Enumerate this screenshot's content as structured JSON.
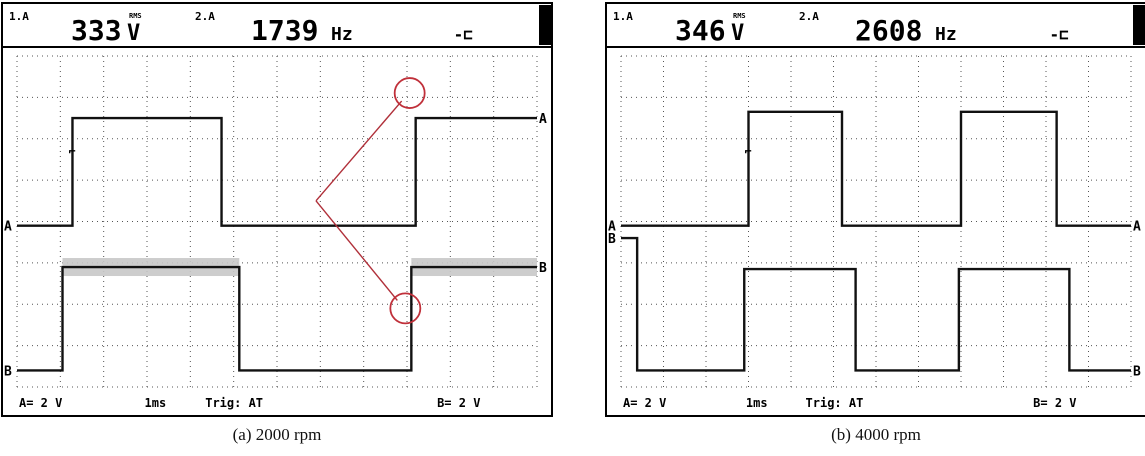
{
  "chart_data": [
    {
      "type": "line",
      "title": "",
      "header": {
        "ch1_tag": "1.A",
        "ch1_value": "333",
        "ch1_unit": "V",
        "ch1_unit_sup": "RMS",
        "ch2_tag": "2.A",
        "ch2_value": "1739",
        "ch2_unit": "Hz",
        "trigger_symbol": "-⊏"
      },
      "footer": {
        "a_range": "A= 2 V",
        "timebase": "1ms",
        "trigger": "Trig: AT",
        "b_range": "B= 2 V"
      },
      "caption": "(a) 2000 rpm",
      "channel_markers": {
        "left_a": "A",
        "left_b": "B",
        "right_a": "A",
        "right_b": "B"
      },
      "x_divisions": 12,
      "y_divisions": 8,
      "grid": true,
      "time_per_div_ms": 1,
      "series": [
        {
          "name": "A",
          "values": [
            [
              0,
              -0.1
            ],
            [
              1.28,
              -0.1
            ],
            [
              1.28,
              2.5
            ],
            [
              4.72,
              2.5
            ],
            [
              4.72,
              -0.1
            ],
            [
              9.2,
              -0.1
            ],
            [
              9.2,
              2.5
            ],
            [
              12,
              2.5
            ]
          ]
        },
        {
          "name": "B",
          "values": [
            [
              0,
              -3.6
            ],
            [
              1.05,
              -3.6
            ],
            [
              1.05,
              -1.1
            ],
            [
              5.13,
              -1.1
            ],
            [
              5.13,
              -3.6
            ],
            [
              9.1,
              -3.6
            ],
            [
              9.1,
              -1.1
            ],
            [
              12,
              -1.1
            ]
          ]
        }
      ],
      "annotations": [
        {
          "type": "circle",
          "x": 9.2,
          "y": 2.5
        },
        {
          "type": "circle",
          "x": 9.1,
          "y": -2.1
        }
      ]
    },
    {
      "type": "line",
      "title": "",
      "header": {
        "ch1_tag": "1.A",
        "ch1_value": "346",
        "ch1_unit": "V",
        "ch1_unit_sup": "RMS",
        "ch2_tag": "2.A",
        "ch2_value": "2608",
        "ch2_unit": "Hz",
        "trigger_symbol": "-⊏"
      },
      "footer": {
        "a_range": "A= 2 V",
        "timebase": "1ms",
        "trigger": "Trig: AT",
        "b_range": "B= 2 V"
      },
      "caption": "(b) 4000 rpm",
      "channel_markers": {
        "left_a": "A",
        "left_b": "B",
        "right_a": "A",
        "right_b": "B"
      },
      "x_divisions": 12,
      "y_divisions": 8,
      "grid": true,
      "time_per_div_ms": 1,
      "series": [
        {
          "name": "A",
          "values": [
            [
              0,
              -0.1
            ],
            [
              3.0,
              -0.1
            ],
            [
              3.0,
              2.65
            ],
            [
              5.2,
              2.65
            ],
            [
              5.2,
              -0.1
            ],
            [
              8.0,
              -0.1
            ],
            [
              8.0,
              2.65
            ],
            [
              10.25,
              2.65
            ],
            [
              10.25,
              -0.1
            ],
            [
              12,
              -0.1
            ]
          ]
        },
        {
          "name": "B",
          "values": [
            [
              0,
              -0.4
            ],
            [
              0.38,
              -0.4
            ],
            [
              0.38,
              -3.6
            ],
            [
              2.9,
              -3.6
            ],
            [
              2.9,
              -1.15
            ],
            [
              5.52,
              -1.15
            ],
            [
              5.52,
              -3.6
            ],
            [
              7.95,
              -3.6
            ],
            [
              7.95,
              -1.15
            ],
            [
              10.55,
              -1.15
            ],
            [
              10.55,
              -3.6
            ],
            [
              12,
              -3.6
            ]
          ]
        }
      ],
      "annotations": []
    }
  ]
}
